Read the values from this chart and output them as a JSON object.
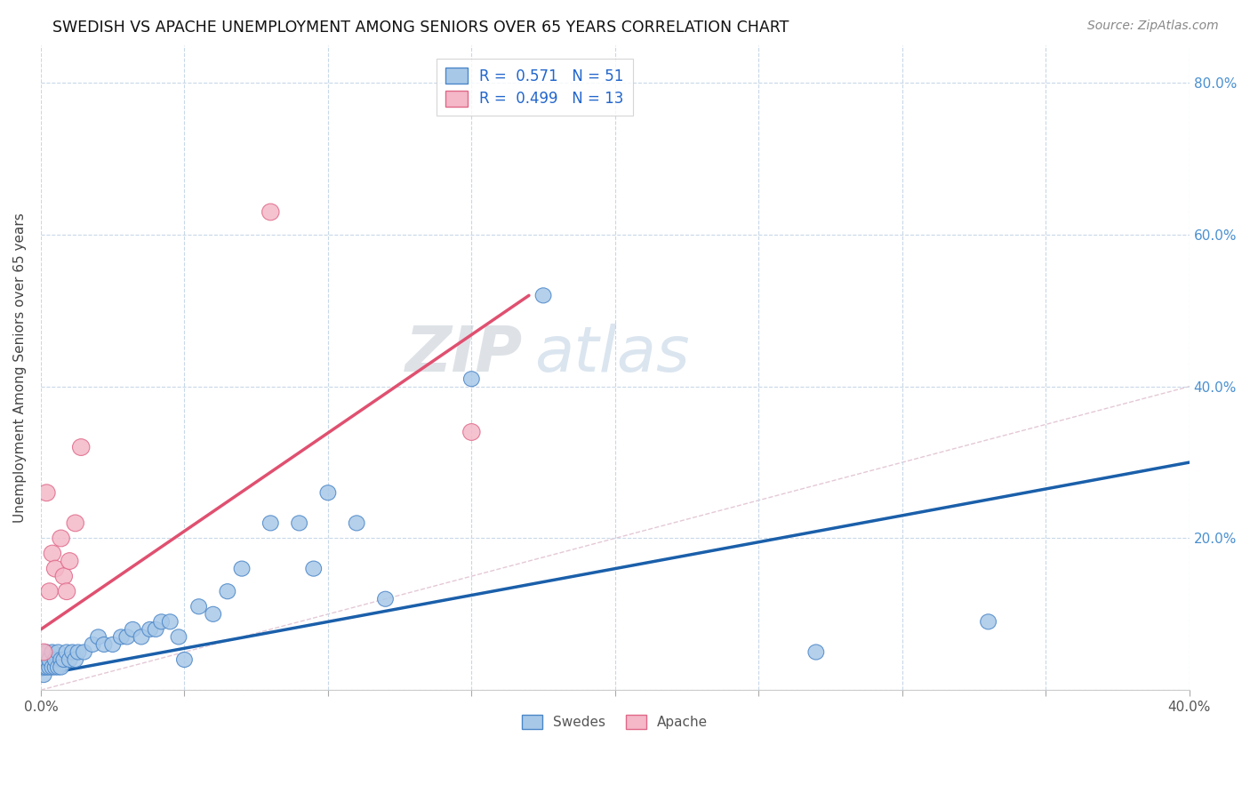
{
  "title": "SWEDISH VS APACHE UNEMPLOYMENT AMONG SENIORS OVER 65 YEARS CORRELATION CHART",
  "source": "Source: ZipAtlas.com",
  "ylabel": "Unemployment Among Seniors over 65 years",
  "xlim": [
    0.0,
    0.4
  ],
  "ylim": [
    0.0,
    0.85
  ],
  "ytick_positions": [
    0.0,
    0.2,
    0.4,
    0.6,
    0.8
  ],
  "ytick_labels": [
    "",
    "20.0%",
    "40.0%",
    "60.0%",
    "80.0%"
  ],
  "swedish_color": "#a8c8e8",
  "apache_color": "#f4b8c8",
  "swedish_edge": "#4a86c8",
  "apache_edge": "#e06888",
  "trendline_swedish_color": "#1a5faa",
  "trendline_apache_color": "#e05070",
  "diagonal_color": "#cccccc",
  "legend_R_swedish": "0.571",
  "legend_N_swedish": "51",
  "legend_R_apache": "0.499",
  "legend_N_apache": "13",
  "watermark_zip": "ZIP",
  "watermark_atlas": "atlas",
  "swedish_x": [
    0.001,
    0.001,
    0.001,
    0.002,
    0.002,
    0.002,
    0.003,
    0.003,
    0.004,
    0.004,
    0.005,
    0.005,
    0.006,
    0.006,
    0.007,
    0.007,
    0.008,
    0.009,
    0.01,
    0.011,
    0.012,
    0.013,
    0.015,
    0.018,
    0.02,
    0.022,
    0.025,
    0.028,
    0.03,
    0.032,
    0.035,
    0.038,
    0.04,
    0.042,
    0.045,
    0.048,
    0.05,
    0.055,
    0.06,
    0.065,
    0.07,
    0.08,
    0.09,
    0.095,
    0.1,
    0.11,
    0.12,
    0.15,
    0.175,
    0.27,
    0.33
  ],
  "swedish_y": [
    0.02,
    0.03,
    0.04,
    0.03,
    0.04,
    0.05,
    0.03,
    0.04,
    0.03,
    0.05,
    0.03,
    0.04,
    0.03,
    0.05,
    0.04,
    0.03,
    0.04,
    0.05,
    0.04,
    0.05,
    0.04,
    0.05,
    0.05,
    0.06,
    0.07,
    0.06,
    0.06,
    0.07,
    0.07,
    0.08,
    0.07,
    0.08,
    0.08,
    0.09,
    0.09,
    0.07,
    0.04,
    0.11,
    0.1,
    0.13,
    0.16,
    0.22,
    0.22,
    0.16,
    0.26,
    0.22,
    0.12,
    0.41,
    0.52,
    0.05,
    0.09
  ],
  "apache_x": [
    0.001,
    0.002,
    0.003,
    0.004,
    0.005,
    0.007,
    0.008,
    0.009,
    0.01,
    0.012,
    0.014,
    0.08,
    0.15
  ],
  "apache_y": [
    0.05,
    0.26,
    0.13,
    0.18,
    0.16,
    0.2,
    0.15,
    0.13,
    0.17,
    0.22,
    0.32,
    0.63,
    0.34
  ],
  "trendline_sw_x0": 0.0,
  "trendline_sw_x1": 0.4,
  "trendline_ap_x0": 0.0,
  "trendline_ap_x1": 0.17
}
